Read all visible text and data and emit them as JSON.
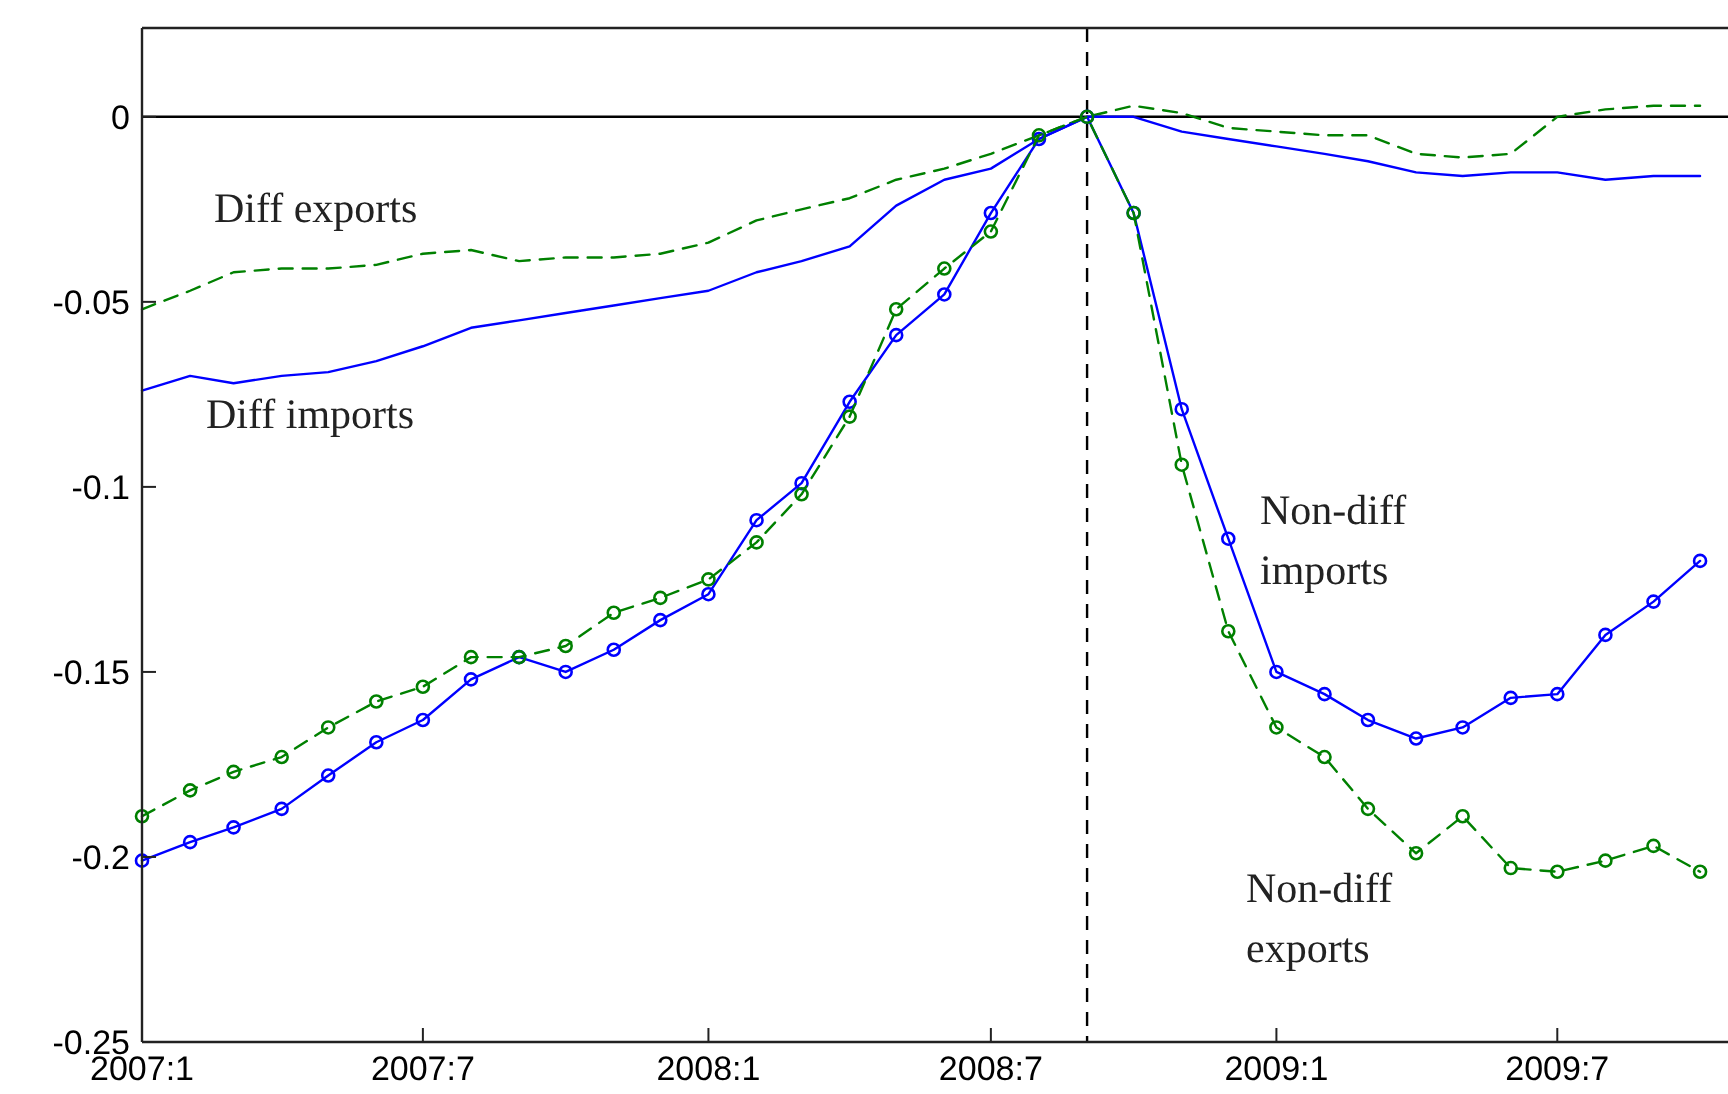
{
  "chart_data": {
    "type": "line",
    "x": [
      "2007-01",
      "2007-02",
      "2007-03",
      "2007-04",
      "2007-05",
      "2007-06",
      "2007-07",
      "2007-08",
      "2007-09",
      "2007-10",
      "2007-11",
      "2007-12",
      "2008-01",
      "2008-02",
      "2008-03",
      "2008-04",
      "2008-05",
      "2008-06",
      "2008-07",
      "2008-08",
      "2008-09",
      "2008-10",
      "2008-11",
      "2008-12",
      "2009-01",
      "2009-02",
      "2009-03",
      "2009-04",
      "2009-05",
      "2009-06",
      "2009-07",
      "2009-08",
      "2009-09",
      "2009-10"
    ],
    "series": [
      {
        "name": "Diff exports",
        "color": "#008000",
        "line_style": "dashed",
        "marker": "none",
        "values": [
          -0.052,
          -0.047,
          -0.042,
          -0.041,
          -0.041,
          -0.04,
          -0.037,
          -0.036,
          -0.039,
          -0.038,
          -0.038,
          -0.037,
          -0.034,
          -0.028,
          -0.025,
          -0.022,
          -0.017,
          -0.014,
          -0.01,
          -0.005,
          0,
          0.003,
          0.001,
          -0.003,
          -0.004,
          -0.005,
          -0.005,
          -0.01,
          -0.011,
          -0.01,
          0.0,
          0.002,
          0.003,
          0.003
        ]
      },
      {
        "name": "Diff imports",
        "color": "#0000ff",
        "line_style": "solid",
        "marker": "none",
        "values": [
          -0.074,
          -0.07,
          -0.072,
          -0.07,
          -0.069,
          -0.066,
          -0.062,
          -0.057,
          -0.055,
          -0.053,
          -0.051,
          -0.049,
          -0.047,
          -0.042,
          -0.039,
          -0.035,
          -0.024,
          -0.017,
          -0.014,
          -0.006,
          0,
          0.0,
          -0.004,
          -0.006,
          -0.008,
          -0.01,
          -0.012,
          -0.015,
          -0.016,
          -0.015,
          -0.015,
          -0.017,
          -0.016,
          -0.016
        ]
      },
      {
        "name": "Non-diff imports",
        "color": "#0000ff",
        "line_style": "solid",
        "marker": "circle",
        "values": [
          -0.201,
          -0.196,
          -0.192,
          -0.187,
          -0.178,
          -0.169,
          -0.163,
          -0.152,
          -0.146,
          -0.15,
          -0.144,
          -0.136,
          -0.129,
          -0.109,
          -0.099,
          -0.077,
          -0.059,
          -0.048,
          -0.026,
          -0.006,
          0,
          -0.026,
          -0.079,
          -0.114,
          -0.15,
          -0.156,
          -0.163,
          -0.168,
          -0.165,
          -0.157,
          -0.156,
          -0.14,
          -0.131,
          -0.12
        ]
      },
      {
        "name": "Non-diff exports",
        "color": "#008000",
        "line_style": "dashed",
        "marker": "circle",
        "values": [
          -0.189,
          -0.182,
          -0.177,
          -0.173,
          -0.165,
          -0.158,
          -0.154,
          -0.146,
          -0.146,
          -0.143,
          -0.134,
          -0.13,
          -0.125,
          -0.115,
          -0.102,
          -0.081,
          -0.052,
          -0.041,
          -0.031,
          -0.005,
          0,
          -0.026,
          -0.094,
          -0.139,
          -0.165,
          -0.173,
          -0.187,
          -0.199,
          -0.189,
          -0.203,
          -0.204,
          -0.201,
          -0.197,
          -0.204
        ]
      }
    ],
    "xlim": [
      "2007-01-01",
      "2009-10-19"
    ],
    "xticks": [
      {
        "value": "2007-01",
        "label": "2007:1"
      },
      {
        "value": "2007-07",
        "label": "2007:7"
      },
      {
        "value": "2008-01",
        "label": "2008:1"
      },
      {
        "value": "2008-07",
        "label": "2008:7"
      },
      {
        "value": "2009-01",
        "label": "2009:1"
      },
      {
        "value": "2009-07",
        "label": "2009:7"
      }
    ],
    "ylim": [
      -0.25,
      0.024
    ],
    "yticks": [
      -0.25,
      -0.2,
      -0.15,
      -0.1,
      -0.05,
      0
    ],
    "ref_lines": [
      {
        "axis": "y",
        "value": 0,
        "color": "#000000",
        "line_style": "solid"
      },
      {
        "axis": "x",
        "value": "2008-09",
        "color": "#000000",
        "line_style": "dashed"
      }
    ],
    "grid": false
  }
}
